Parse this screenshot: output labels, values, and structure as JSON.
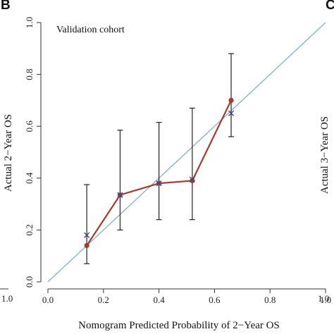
{
  "panel_label": "B",
  "next_panel_label": "C",
  "adjacent_panel": {
    "ylabel": "Actual 3−Year OS",
    "left_tick_value": "1.0",
    "right_panel_tick_value": "1.0"
  },
  "colors": {
    "ideal_line": "#7fb0cc",
    "observed_line": "#a83a2a",
    "observed_point": "#a83a2a",
    "bootstrap_marker": "#3a4a8a",
    "error_bar": "#222222",
    "axis": "#333333"
  },
  "chart_data": {
    "type": "line",
    "title": "Validation cohort",
    "xlabel": "Nomogram Predicted Probability of 2−Year OS",
    "ylabel": "Actual 2−Year OS",
    "xlim": [
      0.0,
      1.0
    ],
    "ylim": [
      0.0,
      1.0
    ],
    "x_ticks": [
      "0.0",
      "0.2",
      "0.4",
      "0.6",
      "0.8",
      "1.0"
    ],
    "y_ticks": [
      "0.0",
      "0.2",
      "0.4",
      "0.6",
      "0.8",
      "1.0"
    ],
    "grid": false,
    "ideal_line": {
      "x": [
        0.0,
        1.0
      ],
      "y": [
        0.0,
        1.0
      ]
    },
    "series": [
      {
        "x": [
          0.14,
          0.26,
          0.4,
          0.52,
          0.66
        ],
        "y": [
          0.14,
          0.335,
          0.38,
          0.39,
          0.7
        ],
        "ci_low": [
          0.07,
          0.2,
          0.24,
          0.24,
          0.56
        ],
        "ci_high": [
          0.375,
          0.585,
          0.615,
          0.67,
          0.88
        ]
      },
      {
        "x": [
          0.14,
          0.26,
          0.4,
          0.52,
          0.66
        ],
        "y": [
          0.18,
          0.335,
          0.38,
          0.395,
          0.65
        ]
      }
    ]
  }
}
